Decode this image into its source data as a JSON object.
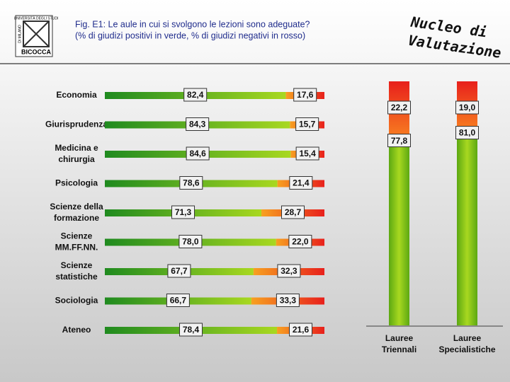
{
  "header": {
    "logo": {
      "top": "UNIVERSITÀ DEGLI STUDI",
      "side": "DI MILANO",
      "name": "BICOCCA"
    },
    "brand": [
      "Nucleo di",
      "Valutazione"
    ]
  },
  "chart_data": [
    {
      "type": "bar",
      "orientation": "horizontal",
      "stacked": true,
      "title": [
        "Fig. E1: Le aule in cui si svolgono le lezioni sono adeguate?",
        "(% di giudizi positivi in verde, % di giudizi negativi in rosso)"
      ],
      "categories": [
        [
          "Economia"
        ],
        [
          "Giurisprudenza"
        ],
        [
          "Medicina e",
          "chirurgia"
        ],
        [
          "Psicologia"
        ],
        [
          "Scienze della",
          "formazione"
        ],
        [
          "Scienze",
          "MM.FF.NN."
        ],
        [
          "Scienze",
          "statistiche"
        ],
        [
          "Sociologia"
        ],
        [
          "Ateneo"
        ]
      ],
      "xlim": [
        0,
        100
      ],
      "series": [
        {
          "color": "#5aa81e",
          "values": [
            82.4,
            84.3,
            84.6,
            78.6,
            71.3,
            78.0,
            67.7,
            66.7,
            78.4
          ],
          "value_labels": [
            "82,4",
            "84,3",
            "84,6",
            "78,6",
            "71,3",
            "78,0",
            "67,7",
            "66,7",
            "78,4"
          ]
        },
        {
          "color": "#e8401c",
          "values": [
            17.6,
            15.7,
            15.4,
            21.4,
            28.7,
            22.0,
            32.3,
            33.3,
            21.6
          ],
          "value_labels": [
            "17,6",
            "15,7",
            "15,4",
            "21,4",
            "28,7",
            "22,0",
            "32,3",
            "33,3",
            "21,6"
          ]
        }
      ]
    },
    {
      "type": "bar",
      "orientation": "vertical",
      "stacked": true,
      "categories": [
        [
          "Lauree",
          "Triennali"
        ],
        [
          "Lauree",
          "Specialistiche"
        ]
      ],
      "ylim": [
        0,
        100
      ],
      "series": [
        {
          "color": "#7cc21a",
          "values": [
            77.8,
            81.0
          ],
          "value_labels": [
            "77,8",
            "81,0"
          ]
        },
        {
          "color": "#e8401c",
          "values": [
            22.2,
            19.0
          ],
          "value_labels": [
            "22,2",
            "19,0"
          ]
        }
      ]
    }
  ]
}
